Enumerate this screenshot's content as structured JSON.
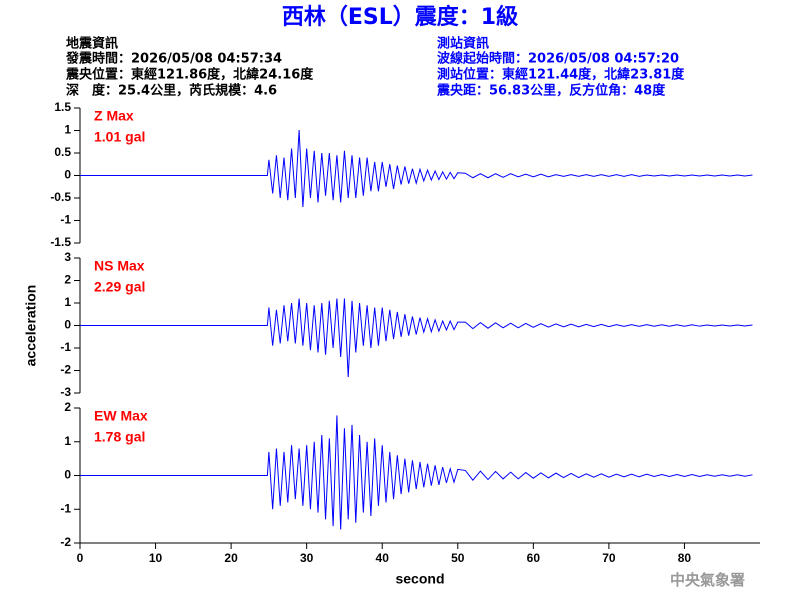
{
  "title": "西林（ESL）震度：1級",
  "left_info": [
    "地震資訊",
    "發震時間：2026/05/08 04:57:34",
    "震央位置：東經121.86度，北緯24.16度",
    "深　度：25.4公里，芮氏規模：4.6"
  ],
  "right_info": [
    "測站資訊",
    "波線起始時間：2026/05/08 04:57:20",
    "測站位置：東經121.44度，北緯23.81度",
    "震央距：56.83公里，反方位角：48度"
  ],
  "footer": "中央氣象署",
  "chart_data": [
    {
      "type": "line",
      "annotations": [
        "Z Max",
        "1.01 gal"
      ],
      "x": [
        0,
        24.8,
        25,
        25.5,
        26,
        26.5,
        27,
        27.5,
        28,
        28.5,
        29,
        29.5,
        30,
        30.5,
        31,
        31.5,
        32,
        32.5,
        33,
        33.5,
        34,
        34.5,
        35,
        35.5,
        36,
        36.5,
        37,
        37.5,
        38,
        38.5,
        39,
        39.5,
        40,
        40.5,
        41,
        41.5,
        42,
        42.5,
        43,
        43.5,
        44,
        44.5,
        45,
        45.5,
        46,
        46.5,
        47,
        47.5,
        48,
        48.5,
        49,
        49.5,
        50,
        51,
        52,
        53,
        54,
        55,
        56,
        57,
        58,
        59,
        60,
        61,
        62,
        63,
        64,
        65,
        66,
        67,
        68,
        69,
        70,
        71,
        72,
        73,
        74,
        75,
        76,
        77,
        78,
        79,
        80,
        81,
        82,
        83,
        84,
        85,
        86,
        87,
        88,
        89
      ],
      "series": [
        {
          "color": "#0000ff",
          "values": [
            0,
            0,
            0.35,
            -0.4,
            0.45,
            -0.5,
            0.4,
            -0.55,
            0.6,
            -0.5,
            1.01,
            -0.7,
            0.6,
            -0.5,
            0.55,
            -0.6,
            0.5,
            -0.45,
            0.5,
            -0.55,
            0.45,
            -0.6,
            0.55,
            -0.5,
            0.45,
            -0.5,
            0.4,
            -0.45,
            0.4,
            -0.35,
            0.3,
            -0.35,
            0.3,
            -0.25,
            0.25,
            -0.3,
            0.22,
            -0.2,
            0.2,
            -0.18,
            0.15,
            -0.17,
            0.14,
            -0.12,
            0.12,
            -0.1,
            0.1,
            -0.09,
            0.08,
            -0.08,
            0.07,
            -0.07,
            0.06,
            0.05,
            -0.05,
            0.04,
            -0.05,
            0.04,
            -0.04,
            0.04,
            -0.03,
            0.03,
            -0.03,
            0.03,
            -0.03,
            0.02,
            -0.02,
            0.02,
            -0.02,
            0.02,
            -0.02,
            0.02,
            -0.02,
            0.02,
            -0.02,
            0.02,
            -0.02,
            0.01,
            -0.01,
            0.01,
            -0.01,
            0.01,
            -0.01,
            0.01,
            -0.01,
            0.01,
            -0.01,
            0.01,
            -0.01,
            0.01,
            -0.01,
            0.01
          ]
        }
      ],
      "xlim": [
        0,
        90
      ],
      "ylim": [
        -1.5,
        1.5
      ],
      "yticks": [
        -1.5,
        -1,
        -0.5,
        0,
        0.5,
        1,
        1.5
      ]
    },
    {
      "type": "line",
      "annotations": [
        "NS Max",
        "2.29 gal"
      ],
      "ylabel": "acceleration",
      "x": [
        0,
        24.8,
        25,
        25.5,
        26,
        26.5,
        27,
        27.5,
        28,
        28.5,
        29,
        29.5,
        30,
        30.5,
        31,
        31.5,
        32,
        32.5,
        33,
        33.5,
        34,
        34.5,
        35,
        35.5,
        36,
        36.5,
        37,
        37.5,
        38,
        38.5,
        39,
        39.5,
        40,
        40.5,
        41,
        41.5,
        42,
        42.5,
        43,
        43.5,
        44,
        44.5,
        45,
        45.5,
        46,
        46.5,
        47,
        47.5,
        48,
        48.5,
        49,
        49.5,
        50,
        51,
        52,
        53,
        54,
        55,
        56,
        57,
        58,
        59,
        60,
        61,
        62,
        63,
        64,
        65,
        66,
        67,
        68,
        69,
        70,
        71,
        72,
        73,
        74,
        75,
        76,
        77,
        78,
        79,
        80,
        81,
        82,
        83,
        84,
        85,
        86,
        87,
        88,
        89
      ],
      "series": [
        {
          "color": "#0000ff",
          "values": [
            0,
            0,
            0.8,
            -0.9,
            0.7,
            -0.8,
            0.9,
            -0.7,
            1.0,
            -0.8,
            1.2,
            -0.9,
            1.0,
            -1.1,
            0.9,
            -1.2,
            1.0,
            -1.3,
            1.1,
            -1.0,
            1.2,
            -1.4,
            1.2,
            -2.29,
            1.1,
            -1.2,
            1.0,
            -0.9,
            0.9,
            -1.0,
            0.8,
            -0.9,
            0.8,
            -0.7,
            0.7,
            -0.6,
            0.6,
            -0.5,
            0.5,
            -0.45,
            0.4,
            -0.4,
            0.35,
            -0.3,
            0.3,
            -0.28,
            0.25,
            -0.25,
            0.2,
            -0.2,
            0.2,
            -0.18,
            0.15,
            0.15,
            -0.14,
            0.13,
            -0.12,
            0.12,
            -0.1,
            0.1,
            -0.1,
            0.09,
            -0.08,
            0.08,
            -0.07,
            0.07,
            -0.06,
            0.06,
            -0.06,
            0.05,
            -0.05,
            0.05,
            -0.05,
            0.04,
            -0.04,
            0.04,
            -0.04,
            0.04,
            -0.03,
            0.03,
            -0.03,
            0.03,
            -0.03,
            0.03,
            -0.03,
            0.02,
            -0.02,
            0.02,
            -0.02,
            0.02,
            -0.02,
            0.02
          ]
        }
      ],
      "xlim": [
        0,
        90
      ],
      "ylim": [
        -3,
        3
      ],
      "yticks": [
        -3,
        -2,
        -1,
        0,
        1,
        2,
        3
      ]
    },
    {
      "type": "line",
      "annotations": [
        "EW Max",
        "1.78 gal"
      ],
      "xlabel": "second",
      "x": [
        0,
        24.8,
        25,
        25.5,
        26,
        26.5,
        27,
        27.5,
        28,
        28.5,
        29,
        29.5,
        30,
        30.5,
        31,
        31.5,
        32,
        32.5,
        33,
        33.5,
        34,
        34.5,
        35,
        35.5,
        36,
        36.5,
        37,
        37.5,
        38,
        38.5,
        39,
        39.5,
        40,
        40.5,
        41,
        41.5,
        42,
        42.5,
        43,
        43.5,
        44,
        44.5,
        45,
        45.5,
        46,
        46.5,
        47,
        47.5,
        48,
        48.5,
        49,
        49.5,
        50,
        51,
        52,
        53,
        54,
        55,
        56,
        57,
        58,
        59,
        60,
        61,
        62,
        63,
        64,
        65,
        66,
        67,
        68,
        69,
        70,
        71,
        72,
        73,
        74,
        75,
        76,
        77,
        78,
        79,
        80,
        81,
        82,
        83,
        84,
        85,
        86,
        87,
        88,
        89
      ],
      "series": [
        {
          "color": "#0000ff",
          "values": [
            0,
            0,
            0.7,
            -1.0,
            0.8,
            -0.9,
            0.7,
            -0.8,
            0.9,
            -0.7,
            0.8,
            -0.9,
            0.9,
            -1.0,
            1.0,
            -1.1,
            1.2,
            -1.3,
            1.1,
            -1.5,
            1.78,
            -1.6,
            1.4,
            -1.3,
            1.5,
            -1.4,
            1.2,
            -1.1,
            1.0,
            -1.2,
            1.1,
            -0.9,
            0.9,
            -0.8,
            0.7,
            -0.7,
            0.6,
            -0.55,
            0.5,
            -0.5,
            0.45,
            -0.4,
            0.4,
            -0.35,
            0.35,
            -0.3,
            0.3,
            -0.28,
            0.25,
            -0.22,
            0.2,
            -0.2,
            0.18,
            0.15,
            -0.14,
            0.13,
            -0.12,
            0.12,
            -0.1,
            0.1,
            -0.1,
            0.09,
            -0.08,
            0.08,
            -0.07,
            0.07,
            -0.06,
            0.06,
            -0.06,
            0.05,
            -0.05,
            0.05,
            -0.05,
            0.04,
            -0.04,
            0.04,
            -0.04,
            0.04,
            -0.03,
            0.03,
            -0.03,
            0.03,
            -0.03,
            0.03,
            -0.03,
            0.02,
            -0.02,
            0.02,
            -0.02,
            0.02,
            -0.02,
            0.02
          ]
        }
      ],
      "xlim": [
        0,
        90
      ],
      "ylim": [
        -2,
        2
      ],
      "yticks": [
        -2,
        -1,
        0,
        1,
        2
      ],
      "xticks": [
        0,
        10,
        20,
        30,
        40,
        50,
        60,
        70,
        80
      ]
    }
  ]
}
